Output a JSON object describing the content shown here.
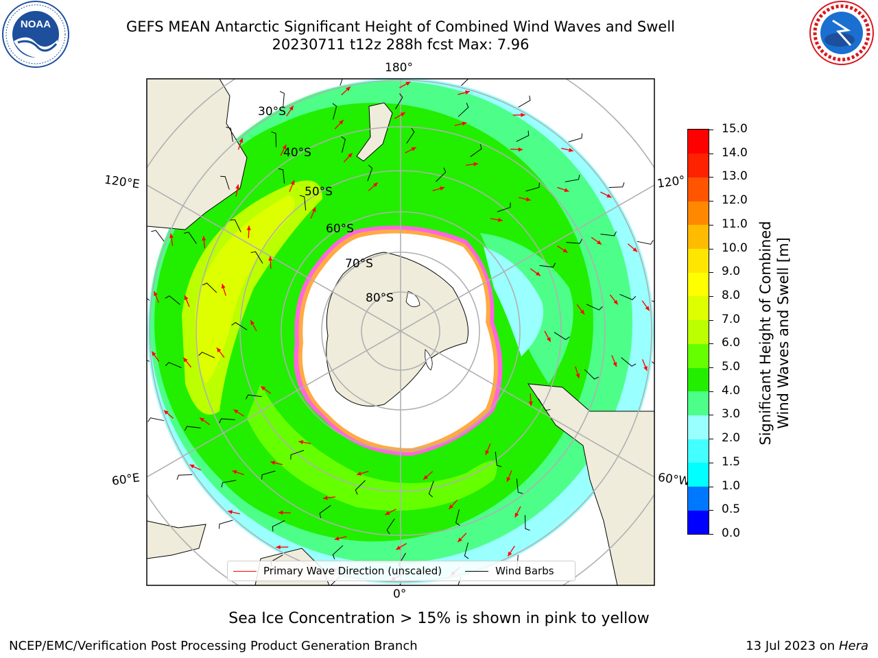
{
  "header": {
    "title": "GEFS MEAN Antarctic Significant Height of Combined Wind Waves and Swell",
    "subtitle": "20230711 t12z 288h fcst   Max: 7.96"
  },
  "logos": {
    "noaa": {
      "text": "NOAA",
      "ring_text": "NATIONAL OCEANIC AND ATMOSPHERIC ADMINISTRATION · U.S. DEPARTMENT OF COMMERCE",
      "color": "#1d4f9c"
    },
    "nws": {
      "ring_text": "NATIONAL WEATHER SERVICE",
      "color": "#d9161c"
    }
  },
  "map": {
    "projection": "south-polar-stereographic",
    "longitude_labels": [
      "180°",
      "120°E",
      "120°",
      "60°E",
      "60°W",
      "0°"
    ],
    "latitude_labels": [
      "30°S",
      "40°S",
      "50°S",
      "60°S",
      "70°S",
      "80°S"
    ],
    "land_color": "#efecdc",
    "ocean_colors": {
      "low": "#99ffff",
      "mid": "#4dff88",
      "high": "#22ee00",
      "peak": "#ddff00"
    },
    "sea_ice_colors": [
      "#ff66dd",
      "#ffaa44",
      "#ffffff"
    ],
    "arrow_color": "#ff0000",
    "barb_color": "#000000"
  },
  "legend": {
    "items": [
      {
        "label": "Primary Wave Direction (unscaled)",
        "color": "#ff0000"
      },
      {
        "label": "Wind Barbs",
        "color": "#000000"
      }
    ]
  },
  "colorbar": {
    "title_line1": "Significant Height of Combined",
    "title_line2": "Wind Waves and Swell [m]",
    "ticks": [
      "0.0",
      "0.5",
      "1.0",
      "1.5",
      "2.0",
      "3.0",
      "4.0",
      "5.0",
      "6.0",
      "7.0",
      "8.0",
      "9.0",
      "10.0",
      "11.0",
      "12.0",
      "13.0",
      "14.0",
      "15.0"
    ],
    "colors": [
      "#0000ff",
      "#0077ff",
      "#00ffff",
      "#44ffff",
      "#99ffff",
      "#4dff88",
      "#22ee00",
      "#66ff00",
      "#bbff00",
      "#ddff00",
      "#ffff00",
      "#ffe600",
      "#ffbb00",
      "#ff8800",
      "#ff5500",
      "#ff2200",
      "#ff0000"
    ]
  },
  "footer": {
    "note": "Sea Ice Concentration > 15% is shown in pink to yellow",
    "left": "NCEP/EMC/Verification Post Processing Product Generation Branch",
    "right_date": "13 Jul 2023 on ",
    "right_machine": "Hera"
  }
}
